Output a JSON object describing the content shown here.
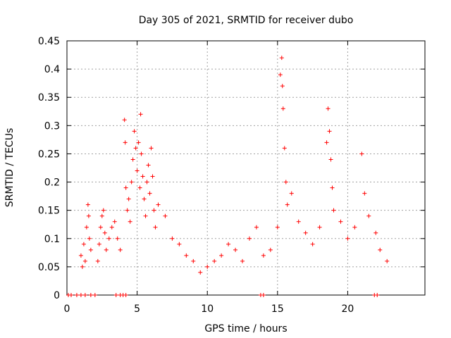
{
  "chart_data": {
    "type": "scatter",
    "title": "Day 305 of 2021, SRMTID for receiver dubo",
    "xlabel": "GPS time / hours",
    "ylabel": "SRMTID / TECUs",
    "xlim": [
      0,
      25.5
    ],
    "ylim": [
      0,
      0.45
    ],
    "xticks": [
      0,
      5,
      10,
      15,
      20
    ],
    "xtick_labels": [
      "0",
      "5",
      "10",
      "15",
      "20"
    ],
    "yticks": [
      0,
      0.05,
      0.1,
      0.15,
      0.2,
      0.25,
      0.3,
      0.35,
      0.4,
      0.45
    ],
    "ytick_labels": [
      "0",
      "0.05",
      "0.1",
      "0.15",
      "0.2",
      "0.25",
      "0.3",
      "0.35",
      "0.4",
      "0.45"
    ],
    "grid": true,
    "marker": "+",
    "series": [
      {
        "name": "SRMTID",
        "color": "#ff0000",
        "points": [
          [
            1.0,
            0.07
          ],
          [
            1.1,
            0.05
          ],
          [
            1.2,
            0.09
          ],
          [
            1.3,
            0.06
          ],
          [
            1.4,
            0.12
          ],
          [
            1.5,
            0.16
          ],
          [
            1.55,
            0.14
          ],
          [
            1.6,
            0.1
          ],
          [
            1.7,
            0.08
          ],
          [
            2.2,
            0.06
          ],
          [
            2.3,
            0.09
          ],
          [
            2.4,
            0.12
          ],
          [
            2.5,
            0.14
          ],
          [
            2.6,
            0.15
          ],
          [
            2.7,
            0.11
          ],
          [
            2.8,
            0.08
          ],
          [
            3.0,
            0.1
          ],
          [
            3.2,
            0.12
          ],
          [
            3.4,
            0.13
          ],
          [
            3.6,
            0.1
          ],
          [
            3.8,
            0.08
          ],
          [
            4.1,
            0.31
          ],
          [
            4.15,
            0.27
          ],
          [
            4.2,
            0.19
          ],
          [
            4.3,
            0.15
          ],
          [
            4.4,
            0.17
          ],
          [
            4.5,
            0.13
          ],
          [
            4.6,
            0.2
          ],
          [
            4.7,
            0.24
          ],
          [
            4.8,
            0.29
          ],
          [
            4.9,
            0.26
          ],
          [
            5.0,
            0.22
          ],
          [
            5.1,
            0.27
          ],
          [
            5.2,
            0.19
          ],
          [
            5.25,
            0.32
          ],
          [
            5.3,
            0.25
          ],
          [
            5.4,
            0.21
          ],
          [
            5.5,
            0.17
          ],
          [
            5.6,
            0.14
          ],
          [
            5.7,
            0.2
          ],
          [
            5.8,
            0.23
          ],
          [
            5.9,
            0.18
          ],
          [
            6.0,
            0.26
          ],
          [
            6.1,
            0.21
          ],
          [
            6.2,
            0.15
          ],
          [
            6.3,
            0.12
          ],
          [
            6.5,
            0.16
          ],
          [
            7.0,
            0.14
          ],
          [
            7.5,
            0.1
          ],
          [
            8.0,
            0.09
          ],
          [
            8.5,
            0.07
          ],
          [
            9.0,
            0.06
          ],
          [
            9.5,
            0.04
          ],
          [
            10.0,
            0.05
          ],
          [
            10.5,
            0.06
          ],
          [
            11.0,
            0.07
          ],
          [
            11.5,
            0.09
          ],
          [
            12.0,
            0.08
          ],
          [
            12.5,
            0.06
          ],
          [
            13.0,
            0.1
          ],
          [
            13.5,
            0.12
          ],
          [
            14.0,
            0.07
          ],
          [
            14.5,
            0.08
          ],
          [
            15.0,
            0.12
          ],
          [
            15.2,
            0.39
          ],
          [
            15.3,
            0.42
          ],
          [
            15.35,
            0.37
          ],
          [
            15.4,
            0.33
          ],
          [
            15.5,
            0.26
          ],
          [
            15.6,
            0.2
          ],
          [
            15.7,
            0.16
          ],
          [
            16.0,
            0.18
          ],
          [
            16.5,
            0.13
          ],
          [
            17.0,
            0.11
          ],
          [
            17.5,
            0.09
          ],
          [
            18.0,
            0.12
          ],
          [
            18.5,
            0.27
          ],
          [
            18.6,
            0.33
          ],
          [
            18.7,
            0.29
          ],
          [
            18.8,
            0.24
          ],
          [
            18.9,
            0.19
          ],
          [
            19.0,
            0.15
          ],
          [
            19.5,
            0.13
          ],
          [
            20.0,
            0.1
          ],
          [
            20.5,
            0.12
          ],
          [
            21.0,
            0.25
          ],
          [
            21.2,
            0.18
          ],
          [
            21.5,
            0.14
          ],
          [
            22.0,
            0.11
          ],
          [
            22.3,
            0.08
          ],
          [
            22.8,
            0.06
          ]
        ]
      }
    ],
    "zero_points_x": [
      0.1,
      0.3,
      0.7,
      1.0,
      1.3,
      1.7,
      2.0,
      3.5,
      3.8,
      4.0,
      4.2,
      13.8,
      14.0,
      21.9,
      22.1
    ]
  }
}
